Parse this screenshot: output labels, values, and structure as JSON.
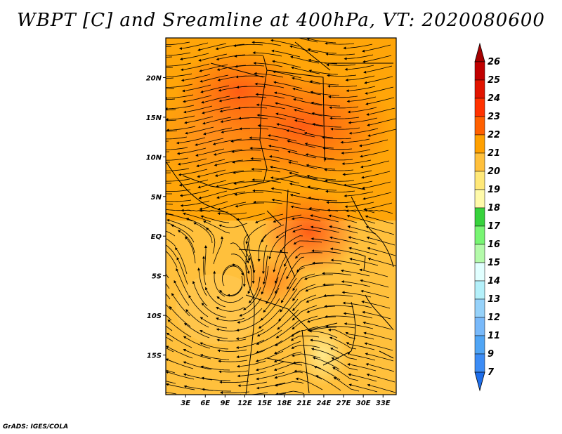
{
  "title": "WBPT [C] and Sreamline at 400hPa, VT: 2020080600",
  "credit": "GrADS: IGES/COLA",
  "map": {
    "lat_labels": [
      "20N",
      "15N",
      "10N",
      "5N",
      "EQ",
      "5S",
      "10S",
      "15S"
    ],
    "lat_values": [
      20,
      15,
      10,
      5,
      0,
      -5,
      -10,
      -15
    ],
    "lon_labels": [
      "3E",
      "6E",
      "9E",
      "12E",
      "15E",
      "18E",
      "21E",
      "24E",
      "27E",
      "30E",
      "33E"
    ],
    "lon_values": [
      3,
      6,
      9,
      12,
      15,
      18,
      21,
      24,
      27,
      30,
      33
    ],
    "lon_range": [
      0,
      35
    ],
    "lat_range": [
      -20,
      25
    ]
  },
  "colorbar": {
    "labels": [
      "7",
      "9",
      "11",
      "12",
      "13",
      "14",
      "15",
      "16",
      "17",
      "18",
      "19",
      "20",
      "21",
      "22",
      "23",
      "24",
      "25",
      "26"
    ],
    "colors": [
      "#1e6eeb",
      "#3c8cf5",
      "#50a5f5",
      "#78b9fa",
      "#96d2fa",
      "#b4f0fa",
      "#e1ffff",
      "#b4faaa",
      "#78f573",
      "#37d23c",
      "#fffaaa",
      "#ffe878",
      "#ffc03c",
      "#ffa000",
      "#ff6000",
      "#ff3200",
      "#e11400",
      "#c00000",
      "#a50000"
    ]
  }
}
